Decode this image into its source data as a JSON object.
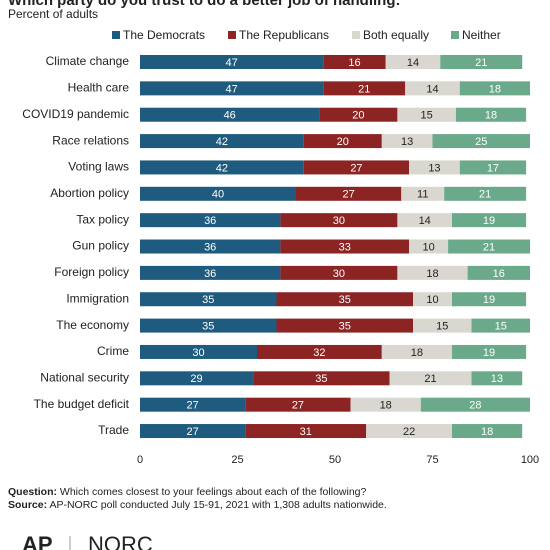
{
  "chart_data": {
    "type": "stacked-bar",
    "title": "Which party do you trust to do a better job of handling:",
    "subtitle": "Percent of adults",
    "categories": [
      "Climate change",
      "Health care",
      "COVID19 pandemic",
      "Race relations",
      "Voting laws",
      "Abortion policy",
      "Tax policy",
      "Gun policy",
      "Foreign policy",
      "Immigration",
      "The economy",
      "Crime",
      "National security",
      "The budget deficit",
      "Trade"
    ],
    "series": [
      {
        "name": "The Democrats",
        "color": "#1e5b7e",
        "values": [
          47,
          47,
          46,
          42,
          42,
          40,
          36,
          36,
          36,
          35,
          35,
          30,
          29,
          27,
          27
        ]
      },
      {
        "name": "The Republicans",
        "color": "#8c2424",
        "values": [
          16,
          21,
          20,
          20,
          27,
          27,
          30,
          33,
          30,
          35,
          35,
          32,
          35,
          27,
          31
        ]
      },
      {
        "name": "Both equally",
        "color": "#dad7d0",
        "values": [
          14,
          14,
          15,
          13,
          13,
          11,
          14,
          10,
          18,
          10,
          15,
          18,
          21,
          18,
          22
        ]
      },
      {
        "name": "Neither",
        "color": "#6aa98a",
        "values": [
          21,
          18,
          18,
          25,
          17,
          21,
          19,
          21,
          16,
          19,
          15,
          19,
          13,
          28,
          18
        ]
      }
    ],
    "xlim": [
      0,
      100
    ],
    "xticks": [
      0,
      25,
      50,
      75,
      100
    ],
    "grid": false,
    "notes": [
      {
        "label": "Question:",
        "text": "Which comes closest to your feelings about each of the following?"
      },
      {
        "label": "Source:",
        "text": "AP-NORC poll conducted July 15-91, 2021 with 1,308 adults nationwide."
      }
    ],
    "logos": [
      "AP",
      "NORC"
    ]
  }
}
